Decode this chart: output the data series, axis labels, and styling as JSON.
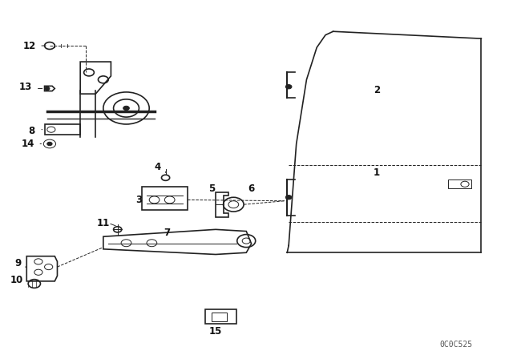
{
  "title": "",
  "background_color": "#ffffff",
  "fig_width": 6.4,
  "fig_height": 4.48,
  "dpi": 100,
  "line_color": "#222222",
  "text_color": "#111111",
  "label_fontsize": 8.5,
  "code_fontsize": 7
}
